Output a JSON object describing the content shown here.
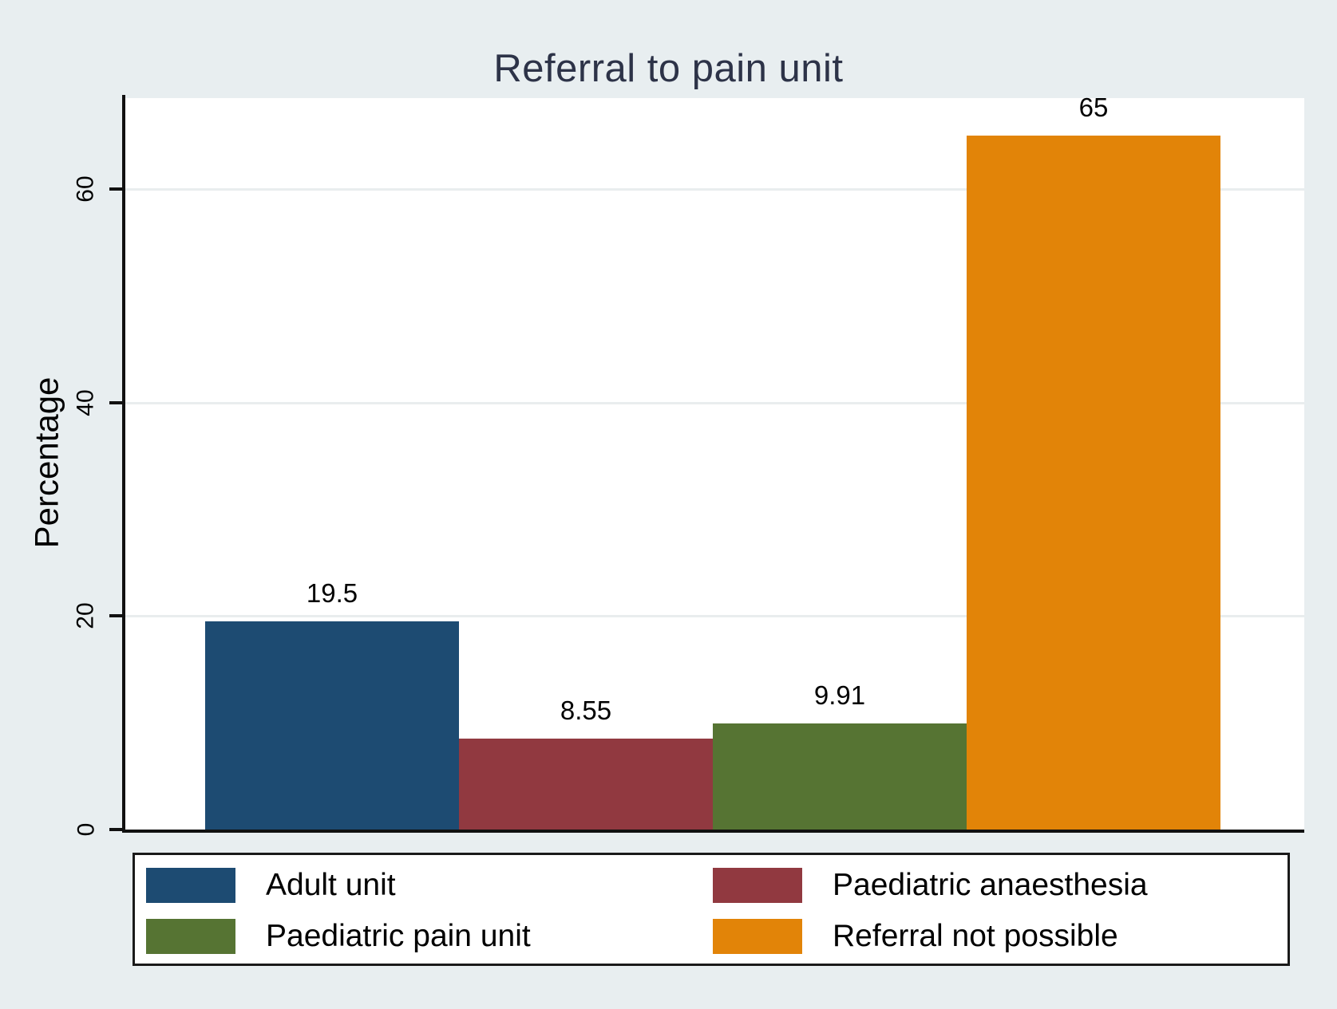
{
  "title": "Referral to pain unit",
  "chart_data": {
    "type": "bar",
    "title": "Referral to pain unit",
    "xlabel": "",
    "ylabel": "Percentage",
    "categories": [
      "Adult unit",
      "Paediatric anaesthesia",
      "Paediatric pain unit",
      "Referral not possible"
    ],
    "values": [
      19.5,
      8.55,
      9.91,
      65
    ],
    "value_labels": [
      "19.5",
      "8.55",
      "9.91",
      "65"
    ],
    "bar_colors": [
      "#1d4b72",
      "#913940",
      "#567433",
      "#e28408"
    ],
    "yticks": [
      0,
      20,
      40,
      60
    ],
    "ytick_labels": [
      "0",
      "20",
      "40",
      "60"
    ],
    "ylim": [
      0,
      68.5
    ],
    "grid": true,
    "legend_position": "bottom",
    "legend": [
      {
        "label": "Adult unit",
        "color": "#1d4b72"
      },
      {
        "label": "Paediatric anaesthesia",
        "color": "#913940"
      },
      {
        "label": "Paediatric pain unit",
        "color": "#567433"
      },
      {
        "label": "Referral not possible",
        "color": "#e28408"
      }
    ]
  },
  "colors": {
    "background": "#e8eef0",
    "plot_background": "#ffffff",
    "gridline": "#e9edee",
    "axis": "#111111",
    "title_text": "#2d3348",
    "label_text": "#000000"
  }
}
